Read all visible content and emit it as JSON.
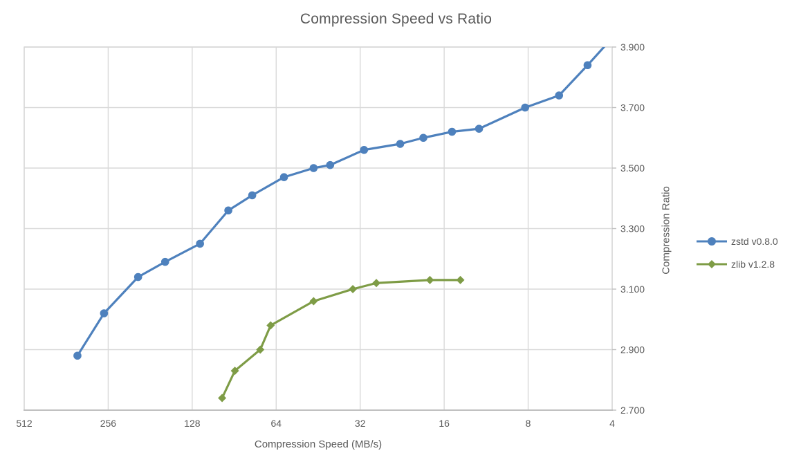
{
  "title": "Compression Speed vs Ratio",
  "chart_data": {
    "type": "line",
    "title": "Compression Speed vs Ratio",
    "xlabel": "Compression Speed (MB/s)",
    "ylabel": "Compression Ratio",
    "x_scale": "log2",
    "x_reversed": true,
    "x_range": [
      512,
      4
    ],
    "y_range": [
      2.7,
      3.9
    ],
    "x_ticks": [
      512,
      256,
      128,
      64,
      32,
      16,
      8,
      4
    ],
    "x_tick_labels": [
      "512",
      "256",
      "128",
      "64",
      "32",
      "16",
      "8",
      "4"
    ],
    "y_ticks": [
      3.9,
      3.7,
      3.5,
      3.3,
      3.1,
      2.9,
      2.7
    ],
    "y_tick_labels": [
      "3.900",
      "3.700",
      "3.500",
      "3.300",
      "3.100",
      "2.900",
      "2.700"
    ],
    "grid": true,
    "legend_position": "right",
    "series": [
      {
        "name": "zstd v0.8.0",
        "color": "#4E81BD",
        "marker": "circle",
        "points": [
          [
            330,
            2.88
          ],
          [
            265,
            3.02
          ],
          [
            200,
            3.14
          ],
          [
            160,
            3.19
          ],
          [
            120,
            3.25
          ],
          [
            95,
            3.36
          ],
          [
            78,
            3.41
          ],
          [
            60,
            3.47
          ],
          [
            47,
            3.5
          ],
          [
            41,
            3.51
          ],
          [
            31,
            3.56
          ],
          [
            23,
            3.58
          ],
          [
            19,
            3.6
          ],
          [
            15,
            3.62
          ],
          [
            12,
            3.63
          ],
          [
            8.2,
            3.7
          ],
          [
            6.2,
            3.74
          ],
          [
            4.9,
            3.84
          ],
          [
            4.0,
            3.93
          ]
        ],
        "last_point_clipped": true
      },
      {
        "name": "zlib v1.2.8",
        "color": "#7E9C46",
        "marker": "diamond",
        "points": [
          [
            100,
            2.74
          ],
          [
            90,
            2.83
          ],
          [
            73,
            2.9
          ],
          [
            67,
            2.98
          ],
          [
            47,
            3.06
          ],
          [
            34,
            3.1
          ],
          [
            28,
            3.12
          ],
          [
            18,
            3.13
          ],
          [
            14,
            3.13
          ]
        ],
        "last_point_clipped": false
      }
    ],
    "colors": {
      "gridline": "#D9D9D9",
      "plot_border": "#D6D6D6",
      "axis_line": "#BFBFBF",
      "text": "#595959"
    }
  }
}
